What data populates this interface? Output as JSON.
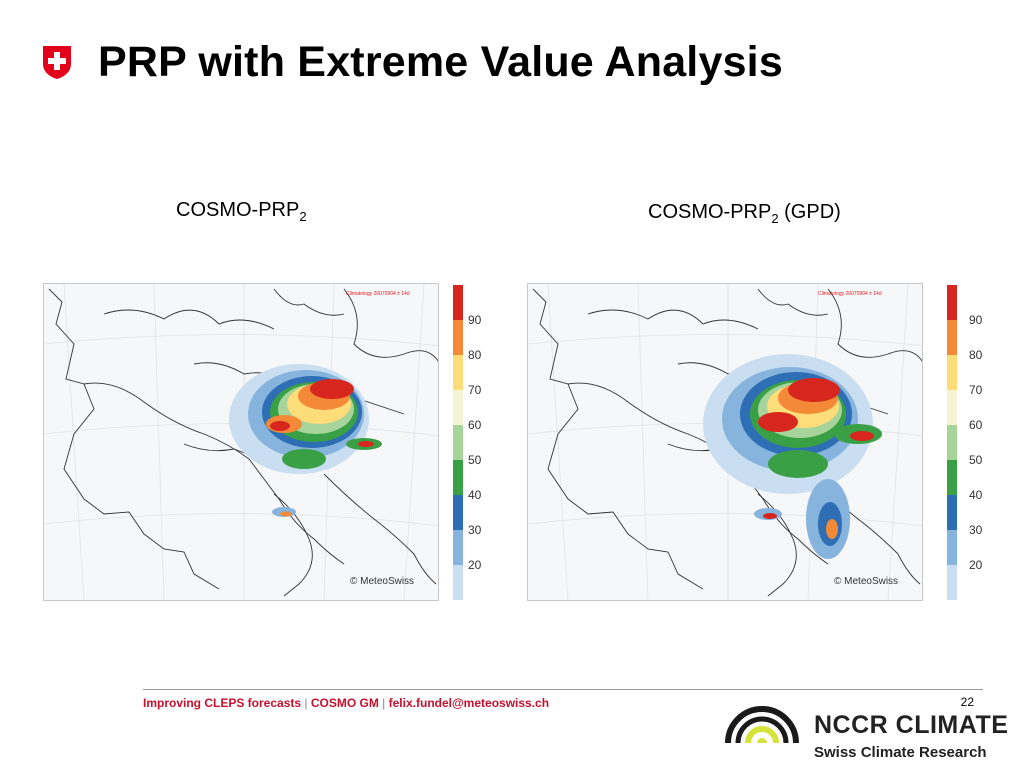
{
  "slide": {
    "title": "PRP with Extreme Value Analysis",
    "page_number": "22"
  },
  "captions": {
    "left": {
      "text": "COSMO-PRP",
      "subscript": "2",
      "suffix": ""
    },
    "right": {
      "text": "COSMO-PRP",
      "subscript": "2",
      "suffix": " (GPD)"
    }
  },
  "maps": {
    "left": {
      "stamp": "Climatology 20070904 ± 14d",
      "copyright": "© MeteoSwiss"
    },
    "right": {
      "stamp": "Climatology 20070904 ± 14d",
      "copyright": "© MeteoSwiss"
    }
  },
  "colorbar": {
    "ticks": [
      "90",
      "80",
      "70",
      "60",
      "50",
      "40",
      "30",
      "20"
    ],
    "colors": [
      "#d7261e",
      "#f48a38",
      "#fddc7a",
      "#f4f4d4",
      "#a6d49a",
      "#3aa045",
      "#2e6eb5",
      "#86b4dc",
      "#c9def1"
    ]
  },
  "footer": {
    "part1": "Improving CLEPS forecasts",
    "separator": " | ",
    "part2": "COSMO GM",
    "part3": "felix.fundel@meteoswiss.ch"
  },
  "logo": {
    "name": "NCCR CLIMATE",
    "subtitle": "Swiss Climate Research"
  },
  "icons": {
    "swiss_flag": "swiss-cross-icon",
    "nccr": "nccr-arc-logo-icon"
  }
}
